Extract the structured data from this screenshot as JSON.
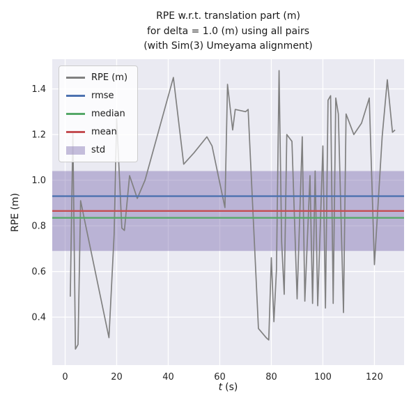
{
  "figure": {
    "title": "RPE w.r.t. translation part (m)\nfor delta = 1.0 (m) using all pairs\n(with Sim(3) Umeyama alignment)",
    "xlabel": "t (s)",
    "xlabel_var": "t",
    "xlabel_unit": "(s)",
    "ylabel": "RPE (m)"
  },
  "chart_data": {
    "type": "line",
    "title": "RPE w.r.t. translation part (m) for delta = 1.0 (m) using all pairs (with Sim(3) Umeyama alignment)",
    "xlabel": "t (s)",
    "ylabel": "RPE (m)",
    "xlim": [
      -5,
      131.5
    ],
    "ylim": [
      0.19,
      1.53
    ],
    "xticks": [
      0,
      20,
      40,
      60,
      80,
      100,
      120
    ],
    "yticks": [
      0.4,
      0.6,
      0.8,
      1.0,
      1.2,
      1.4
    ],
    "grid": true,
    "legend_position": "upper left",
    "colors": {
      "background": "#eaeaf2",
      "grid": "#ffffff",
      "text": "#262626"
    },
    "series": [
      {
        "name": "RPE (m)",
        "type": "line",
        "color": "#808080",
        "x": [
          2,
          3,
          4,
          5,
          6,
          8,
          17,
          19,
          20,
          22,
          23,
          25,
          28,
          31,
          42,
          46,
          50,
          55,
          57,
          62,
          63,
          65,
          66,
          70,
          71,
          75,
          78,
          79,
          80,
          81,
          82,
          83,
          84,
          85,
          86,
          88,
          90,
          92,
          93,
          95,
          96,
          97,
          98,
          100,
          101,
          102,
          103,
          104,
          105,
          106,
          108,
          109,
          112,
          115,
          118,
          120,
          123,
          125,
          127,
          128
        ],
        "y": [
          0.49,
          1.21,
          0.26,
          0.28,
          0.91,
          0.8,
          0.31,
          0.76,
          1.27,
          0.79,
          0.78,
          1.02,
          0.92,
          1.0,
          1.45,
          1.07,
          1.12,
          1.19,
          1.15,
          0.88,
          1.42,
          1.22,
          1.31,
          1.3,
          1.31,
          0.35,
          0.31,
          0.3,
          0.66,
          0.38,
          0.61,
          1.48,
          0.73,
          0.5,
          1.2,
          1.17,
          0.48,
          1.19,
          0.47,
          1.02,
          0.46,
          1.04,
          0.45,
          1.15,
          0.44,
          1.35,
          1.37,
          0.46,
          1.36,
          1.29,
          0.42,
          1.29,
          1.2,
          1.25,
          1.36,
          0.63,
          1.19,
          1.44,
          1.21,
          1.22
        ]
      },
      {
        "name": "rmse",
        "type": "hline",
        "color": "#4c72b0",
        "value": 0.93
      },
      {
        "name": "median",
        "type": "hline",
        "color": "#55a868",
        "value": 0.835
      },
      {
        "name": "mean",
        "type": "hline",
        "color": "#c44e52",
        "value": 0.865
      },
      {
        "name": "std",
        "type": "band",
        "color": "#8172b2",
        "alpha": 0.45,
        "range": [
          0.69,
          1.04
        ]
      }
    ]
  }
}
